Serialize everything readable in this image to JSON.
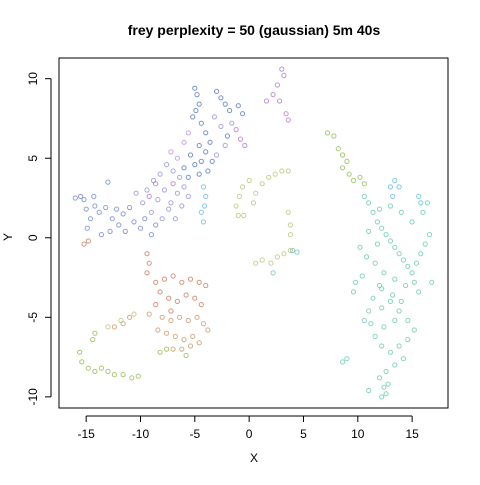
{
  "chart_data": {
    "type": "scatter",
    "title": "frey perplexity = 50 (gaussian) 5m 40s",
    "xlabel": "X",
    "ylabel": "Y",
    "xlim": [
      -17.5,
      18.3
    ],
    "ylim": [
      -10.7,
      11.3
    ],
    "xticks": [
      -15,
      -10,
      -5,
      0,
      5,
      10,
      15
    ],
    "yticks": [
      -10,
      -5,
      0,
      5,
      10
    ],
    "grid": false,
    "legend": "none",
    "point_style": "open circles, semi-transparent, colored by cluster",
    "clusters": [
      {
        "color": "#6a7fd0",
        "points": [
          [
            -16.0,
            2.5
          ],
          [
            -15.5,
            2.6
          ],
          [
            -15.2,
            2.4
          ],
          [
            -15.0,
            1.8
          ],
          [
            -14.6,
            1.2
          ],
          [
            -14.2,
            2.0
          ],
          [
            -13.8,
            1.6
          ],
          [
            -13.2,
            1.9
          ],
          [
            -13.0,
            3.5
          ],
          [
            -12.6,
            1.2
          ],
          [
            -12.2,
            1.8
          ],
          [
            -12.0,
            0.8
          ],
          [
            -11.6,
            1.5
          ],
          [
            -11.0,
            1.9
          ],
          [
            -11.4,
            0.4
          ],
          [
            -10.6,
            1.0
          ],
          [
            -10.0,
            0.6
          ],
          [
            -9.6,
            1.2
          ],
          [
            -9.0,
            0.2
          ],
          [
            -8.6,
            0.8
          ],
          [
            -14.9,
            0.6
          ],
          [
            -13.6,
            0.2
          ],
          [
            -12.8,
            0.4
          ],
          [
            -14.3,
            2.6
          ]
        ]
      },
      {
        "color": "#4a6fc0",
        "points": [
          [
            -5.0,
            9.4
          ],
          [
            -4.8,
            9.0
          ],
          [
            -4.6,
            8.4
          ],
          [
            -4.9,
            8.0
          ],
          [
            -5.2,
            7.6
          ],
          [
            -4.4,
            7.2
          ],
          [
            -3.0,
            9.2
          ],
          [
            -2.6,
            8.8
          ],
          [
            -2.2,
            8.4
          ],
          [
            -1.8,
            8.0
          ],
          [
            -1.0,
            8.3
          ],
          [
            -0.6,
            7.8
          ],
          [
            -4.0,
            6.6
          ],
          [
            -3.6,
            6.0
          ],
          [
            -4.6,
            5.8
          ],
          [
            -5.4,
            5.2
          ],
          [
            -5.0,
            4.6
          ],
          [
            -4.4,
            4.8
          ],
          [
            -4.0,
            5.4
          ],
          [
            -3.4,
            4.8
          ],
          [
            -3.8,
            4.2
          ],
          [
            -4.6,
            4.0
          ],
          [
            -2.0,
            6.4
          ],
          [
            -6.0,
            4.4
          ],
          [
            -5.6,
            3.8
          ]
        ]
      },
      {
        "color": "#8e8ad8",
        "points": [
          [
            -9.4,
            3.0
          ],
          [
            -8.8,
            3.6
          ],
          [
            -8.2,
            4.0
          ],
          [
            -7.6,
            4.6
          ],
          [
            -7.0,
            4.2
          ],
          [
            -6.4,
            3.8
          ],
          [
            -7.8,
            3.0
          ],
          [
            -8.4,
            2.4
          ],
          [
            -7.2,
            2.2
          ],
          [
            -6.6,
            2.8
          ],
          [
            -6.0,
            3.2
          ],
          [
            -9.0,
            1.6
          ],
          [
            -8.0,
            1.2
          ],
          [
            -7.4,
            1.8
          ],
          [
            -6.8,
            1.2
          ],
          [
            -6.2,
            2.0
          ],
          [
            -5.6,
            2.6
          ],
          [
            -9.8,
            2.2
          ],
          [
            -10.4,
            2.8
          ],
          [
            -2.6,
            7.0
          ],
          [
            -3.2,
            7.6
          ],
          [
            -1.6,
            7.2
          ],
          [
            -2.2,
            5.8
          ],
          [
            -3.0,
            5.2
          ]
        ]
      },
      {
        "color": "#b06cd0",
        "points": [
          [
            3.0,
            10.6
          ],
          [
            3.2,
            10.2
          ],
          [
            2.6,
            9.6
          ],
          [
            2.2,
            9.0
          ],
          [
            2.8,
            8.6
          ],
          [
            3.4,
            7.8
          ],
          [
            3.6,
            7.4
          ],
          [
            1.6,
            8.6
          ],
          [
            -1.2,
            6.8
          ],
          [
            -0.8,
            6.2
          ],
          [
            -0.4,
            5.8
          ],
          [
            -8.6,
            3.4
          ],
          [
            -9.2,
            2.6
          ],
          [
            -7.0,
            3.4
          ]
        ]
      },
      {
        "color": "#c08ae0",
        "points": [
          [
            -6.0,
            6.0
          ],
          [
            -5.6,
            6.6
          ],
          [
            -6.6,
            5.0
          ],
          [
            -7.2,
            5.4
          ]
        ]
      },
      {
        "color": "#5ab8d8",
        "points": [
          [
            -4.2,
            3.2
          ],
          [
            -4.0,
            2.6
          ],
          [
            -4.1,
            2.0
          ],
          [
            -4.4,
            1.6
          ],
          [
            -4.2,
            1.0
          ],
          [
            13.0,
            3.2
          ],
          [
            13.4,
            3.6
          ],
          [
            13.8,
            3.2
          ],
          [
            13.2,
            2.6
          ],
          [
            15.6,
            2.6
          ],
          [
            15.8,
            2.2
          ]
        ]
      },
      {
        "color": "#c87050",
        "points": [
          [
            -15.2,
            -0.4
          ],
          [
            -14.8,
            -0.2
          ],
          [
            -9.4,
            -1.0
          ],
          [
            -9.2,
            -1.6
          ],
          [
            -9.4,
            -2.2
          ],
          [
            -8.6,
            -2.8
          ],
          [
            -7.8,
            -2.6
          ],
          [
            -7.0,
            -2.4
          ],
          [
            -6.2,
            -2.8
          ],
          [
            -5.4,
            -2.6
          ],
          [
            -4.6,
            -2.8
          ],
          [
            -4.0,
            -3.0
          ],
          [
            -8.2,
            -3.4
          ],
          [
            -7.4,
            -3.8
          ],
          [
            -6.6,
            -4.0
          ],
          [
            -5.8,
            -3.6
          ],
          [
            -5.0,
            -3.8
          ],
          [
            -4.4,
            -4.2
          ],
          [
            -8.6,
            -4.2
          ],
          [
            -7.2,
            -4.6
          ]
        ]
      },
      {
        "color": "#c89060",
        "points": [
          [
            -8.0,
            -5.0
          ],
          [
            -7.2,
            -5.2
          ],
          [
            -6.4,
            -5.0
          ],
          [
            -5.6,
            -5.2
          ],
          [
            -4.8,
            -5.0
          ],
          [
            -4.2,
            -5.4
          ],
          [
            -3.8,
            -5.8
          ],
          [
            -8.4,
            -5.8
          ],
          [
            -7.6,
            -6.0
          ],
          [
            -6.8,
            -6.2
          ],
          [
            -6.0,
            -6.4
          ],
          [
            -5.2,
            -6.2
          ],
          [
            -4.6,
            -6.6
          ],
          [
            -7.0,
            -7.0
          ],
          [
            -6.2,
            -7.0
          ],
          [
            -5.4,
            -6.8
          ],
          [
            -9.2,
            -4.8
          ],
          [
            -11.0,
            -5.0
          ],
          [
            -11.6,
            -5.4
          ],
          [
            -12.4,
            -5.6
          ]
        ]
      },
      {
        "color": "#b8c070",
        "points": [
          [
            0.0,
            3.6
          ],
          [
            -0.6,
            3.2
          ],
          [
            -0.9,
            2.6
          ],
          [
            -1.2,
            2.0
          ],
          [
            -1.0,
            1.4
          ],
          [
            -0.5,
            1.4
          ],
          [
            0.4,
            2.2
          ],
          [
            0.6,
            2.8
          ],
          [
            1.2,
            3.4
          ],
          [
            1.8,
            3.8
          ],
          [
            2.4,
            4.0
          ],
          [
            3.0,
            4.2
          ],
          [
            3.6,
            4.2
          ],
          [
            0.6,
            -1.6
          ],
          [
            1.2,
            -1.4
          ],
          [
            2.0,
            -1.6
          ],
          [
            2.6,
            -1.2
          ],
          [
            3.2,
            -1.0
          ],
          [
            3.8,
            -0.8
          ],
          [
            3.8,
            0.2
          ],
          [
            3.8,
            0.8
          ],
          [
            3.6,
            1.6
          ],
          [
            -10.6,
            -4.8
          ],
          [
            -11.8,
            -5.2
          ],
          [
            -13.0,
            -5.6
          ]
        ]
      },
      {
        "color": "#8ab848",
        "points": [
          [
            -15.6,
            -7.2
          ],
          [
            -15.4,
            -7.8
          ],
          [
            -14.8,
            -8.2
          ],
          [
            -14.2,
            -8.4
          ],
          [
            -13.6,
            -8.2
          ],
          [
            -13.0,
            -8.4
          ],
          [
            -12.4,
            -8.6
          ],
          [
            -11.6,
            -8.6
          ],
          [
            -10.8,
            -8.8
          ],
          [
            -10.2,
            -8.7
          ],
          [
            -14.4,
            -6.4
          ],
          [
            -14.2,
            -6.0
          ],
          [
            -8.2,
            -7.2
          ],
          [
            -7.6,
            -7.0
          ],
          [
            -5.8,
            -7.4
          ],
          [
            7.2,
            6.6
          ],
          [
            7.8,
            6.4
          ],
          [
            8.2,
            5.6
          ],
          [
            8.6,
            5.2
          ],
          [
            9.0,
            4.8
          ],
          [
            8.6,
            4.4
          ],
          [
            9.2,
            4.0
          ],
          [
            9.6,
            3.6
          ],
          [
            10.2,
            3.8
          ],
          [
            10.6,
            3.4
          ]
        ]
      },
      {
        "color": "#5cc8a8",
        "points": [
          [
            10.6,
            2.6
          ],
          [
            11.0,
            2.2
          ],
          [
            11.4,
            1.6
          ],
          [
            11.8,
            1.0
          ],
          [
            12.2,
            0.6
          ],
          [
            12.6,
            0.2
          ],
          [
            13.0,
            -0.2
          ],
          [
            13.4,
            -0.6
          ],
          [
            13.8,
            -1.0
          ],
          [
            14.2,
            -1.4
          ],
          [
            14.6,
            -1.8
          ],
          [
            15.0,
            -2.2
          ],
          [
            15.4,
            -1.6
          ],
          [
            15.8,
            -1.0
          ],
          [
            16.2,
            -0.4
          ],
          [
            16.6,
            0.2
          ],
          [
            16.8,
            -2.8
          ],
          [
            15.6,
            -3.4
          ],
          [
            14.4,
            -3.0
          ],
          [
            13.4,
            -2.6
          ],
          [
            12.4,
            -2.2
          ],
          [
            11.6,
            -1.6
          ],
          [
            10.8,
            -1.2
          ],
          [
            10.2,
            -0.6
          ],
          [
            11.0,
            0.4
          ],
          [
            12.0,
            1.8
          ],
          [
            13.0,
            2.0
          ],
          [
            14.0,
            1.6
          ],
          [
            15.0,
            1.0
          ],
          [
            16.0,
            1.6
          ],
          [
            16.4,
            2.2
          ],
          [
            12.2,
            -3.2
          ],
          [
            11.4,
            -3.8
          ],
          [
            12.2,
            -4.4
          ],
          [
            13.0,
            -4.0
          ],
          [
            13.8,
            -4.6
          ],
          [
            14.6,
            -5.2
          ],
          [
            15.2,
            -5.8
          ],
          [
            14.6,
            -6.4
          ],
          [
            13.8,
            -6.8
          ],
          [
            13.0,
            -7.2
          ],
          [
            12.2,
            -6.8
          ],
          [
            11.6,
            -6.2
          ],
          [
            11.2,
            -5.4
          ],
          [
            12.4,
            -5.6
          ],
          [
            13.4,
            -5.2
          ],
          [
            14.2,
            -7.6
          ],
          [
            13.4,
            -8.0
          ],
          [
            12.6,
            -8.4
          ],
          [
            12.0,
            -8.8
          ],
          [
            12.4,
            -9.4
          ],
          [
            12.6,
            -9.8
          ],
          [
            12.2,
            -10.0
          ],
          [
            12.8,
            -9.2
          ],
          [
            9.0,
            -7.6
          ],
          [
            8.6,
            -7.8
          ],
          [
            11.0,
            -9.6
          ],
          [
            9.6,
            -3.4
          ],
          [
            9.8,
            -2.8
          ],
          [
            10.4,
            -2.4
          ],
          [
            15.2,
            -2.8
          ],
          [
            11.8,
            -0.4
          ]
        ]
      },
      {
        "color": "#6ac0b8",
        "points": [
          [
            2.2,
            -2.2
          ],
          [
            4.0,
            -0.8
          ],
          [
            4.4,
            -0.9
          ],
          [
            12.0,
            -3.0
          ],
          [
            13.2,
            -3.6
          ],
          [
            14.0,
            -4.0
          ],
          [
            11.0,
            -4.6
          ],
          [
            10.6,
            -5.2
          ]
        ]
      }
    ]
  }
}
